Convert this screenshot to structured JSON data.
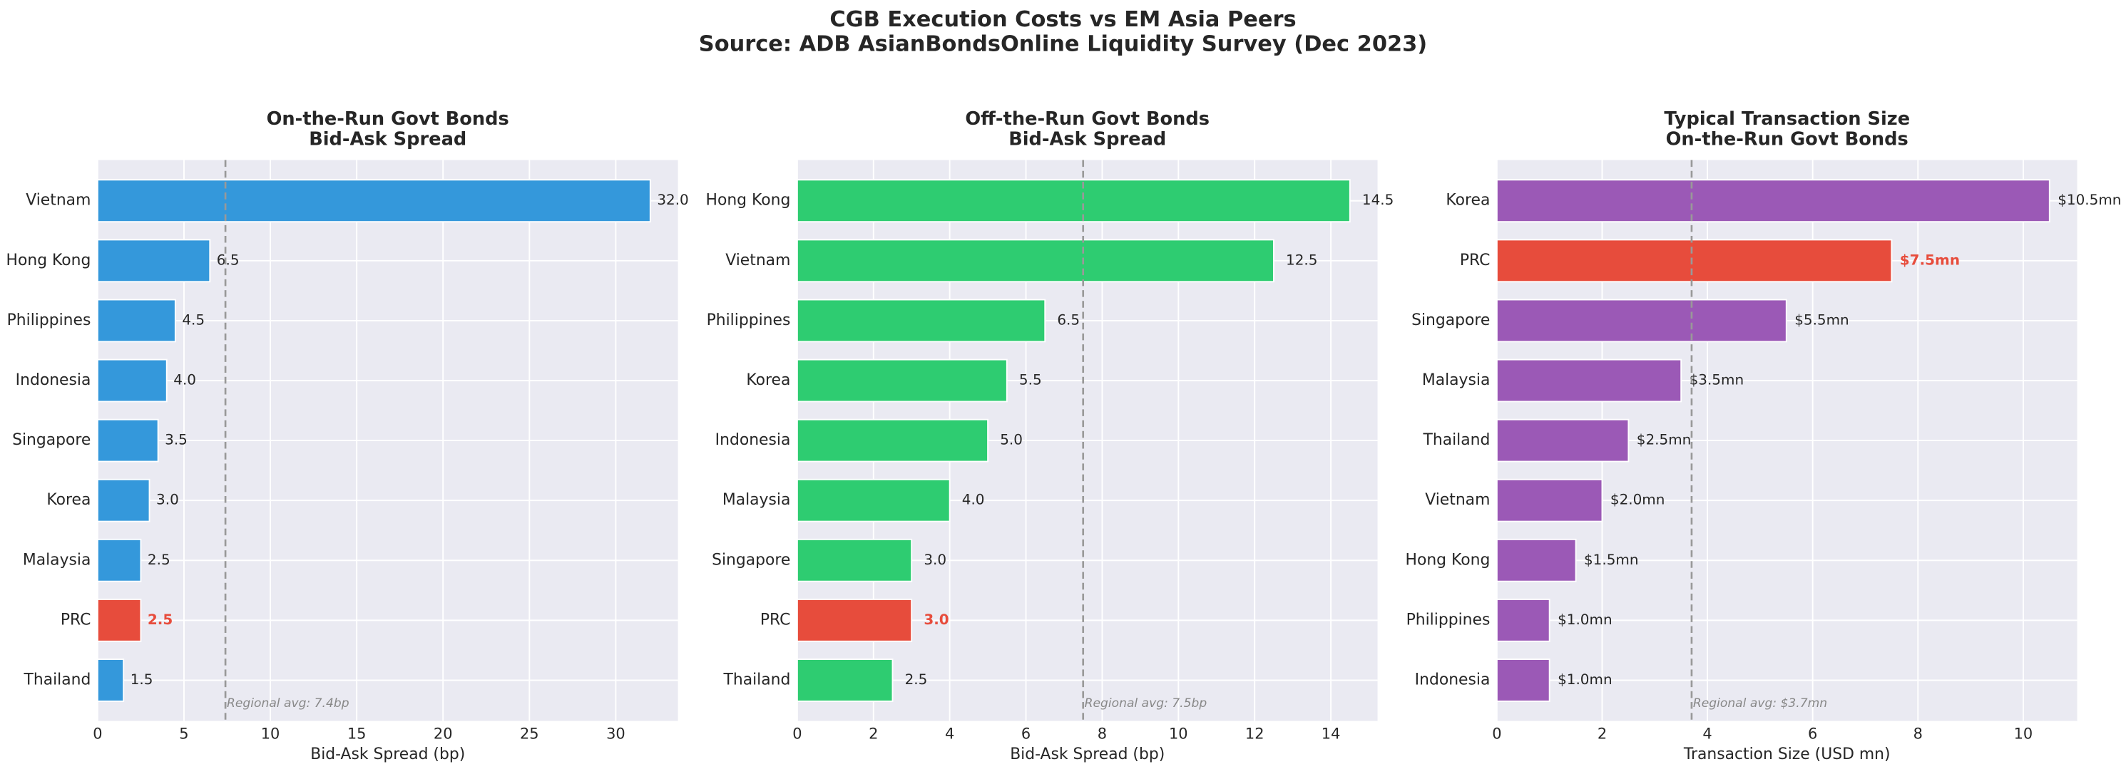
{
  "title": "CGB Execution Costs vs EM Asia Peers",
  "subtitle": "Source: ADB AsianBondsOnline Liquidity Survey (Dec 2023)",
  "chart_data": [
    {
      "type": "bar",
      "orientation": "horizontal",
      "title": [
        "On-the-Run Govt Bonds",
        "Bid-Ask Spread"
      ],
      "x_label": "Bid-Ask Spread (bp)",
      "categories": [
        "Vietnam",
        "Hong Kong",
        "Philippines",
        "Indonesia",
        "Singapore",
        "Korea",
        "Malaysia",
        "PRC",
        "Thailand"
      ],
      "values": [
        32,
        6.5,
        4.5,
        4,
        3.5,
        3,
        2.5,
        2.5,
        1.5
      ],
      "value_labels": [
        "32.0",
        "6.5",
        "4.5",
        "4.0",
        "3.5",
        "3.0",
        "2.5",
        "2.5",
        "1.5"
      ],
      "color": "#3498db",
      "colors": [
        "#3498db",
        "#3498db",
        "#3498db",
        "#3498db",
        "#3498db",
        "#3498db",
        "#3498db",
        "#e74c3c",
        "#3498db"
      ],
      "reference_line": {
        "value": 7.4,
        "label": "Regional avg: 7.4bp"
      },
      "xlim": [
        0,
        33.6
      ],
      "xticks": [
        0,
        5,
        10,
        15,
        20,
        25,
        30
      ],
      "grid": true
    },
    {
      "type": "bar",
      "orientation": "horizontal",
      "title": [
        "Off-the-Run Govt Bonds",
        "Bid-Ask Spread"
      ],
      "x_label": "Bid-Ask Spread (bp)",
      "categories": [
        "Hong Kong",
        "Vietnam",
        "Philippines",
        "Korea",
        "Indonesia",
        "Malaysia",
        "Singapore",
        "PRC",
        "Thailand"
      ],
      "values": [
        14.5,
        12.5,
        6.5,
        5.5,
        5,
        4,
        3,
        3,
        2.5
      ],
      "value_labels": [
        "14.5",
        "12.5",
        "6.5",
        "5.5",
        "5.0",
        "4.0",
        "3.0",
        "3.0",
        "2.5"
      ],
      "color": "#2ecc71",
      "colors": [
        "#2ecc71",
        "#2ecc71",
        "#2ecc71",
        "#2ecc71",
        "#2ecc71",
        "#2ecc71",
        "#2ecc71",
        "#e74c3c",
        "#2ecc71"
      ],
      "reference_line": {
        "value": 7.5,
        "label": "Regional avg: 7.5bp"
      },
      "xlim": [
        0,
        15.225
      ],
      "xticks": [
        0,
        2,
        4,
        6,
        8,
        10,
        12,
        14
      ],
      "grid": true
    },
    {
      "type": "bar",
      "orientation": "horizontal",
      "title": [
        "Typical Transaction Size",
        "On-the-Run Govt Bonds"
      ],
      "x_label": "Transaction Size (USD mn)",
      "categories": [
        "Korea",
        "PRC",
        "Singapore",
        "Malaysia",
        "Thailand",
        "Vietnam",
        "Hong Kong",
        "Philippines",
        "Indonesia"
      ],
      "values": [
        10.5,
        7.5,
        5.5,
        3.5,
        2.5,
        2,
        1.5,
        1,
        1
      ],
      "value_labels": [
        "$10.5mn",
        "$7.5mn",
        "$5.5mn",
        "$3.5mn",
        "$2.5mn",
        "$2.0mn",
        "$1.5mn",
        "$1.0mn",
        "$1.0mn"
      ],
      "color": "#9b59b6",
      "colors": [
        "#9b59b6",
        "#e74c3c",
        "#9b59b6",
        "#9b59b6",
        "#9b59b6",
        "#9b59b6",
        "#9b59b6",
        "#9b59b6",
        "#9b59b6"
      ],
      "reference_line": {
        "value": 3.7,
        "label": "Regional avg: $3.7mn"
      },
      "xlim": [
        0,
        11.025
      ],
      "xticks": [
        0,
        2,
        4,
        6,
        8,
        10
      ],
      "grid": true
    }
  ]
}
